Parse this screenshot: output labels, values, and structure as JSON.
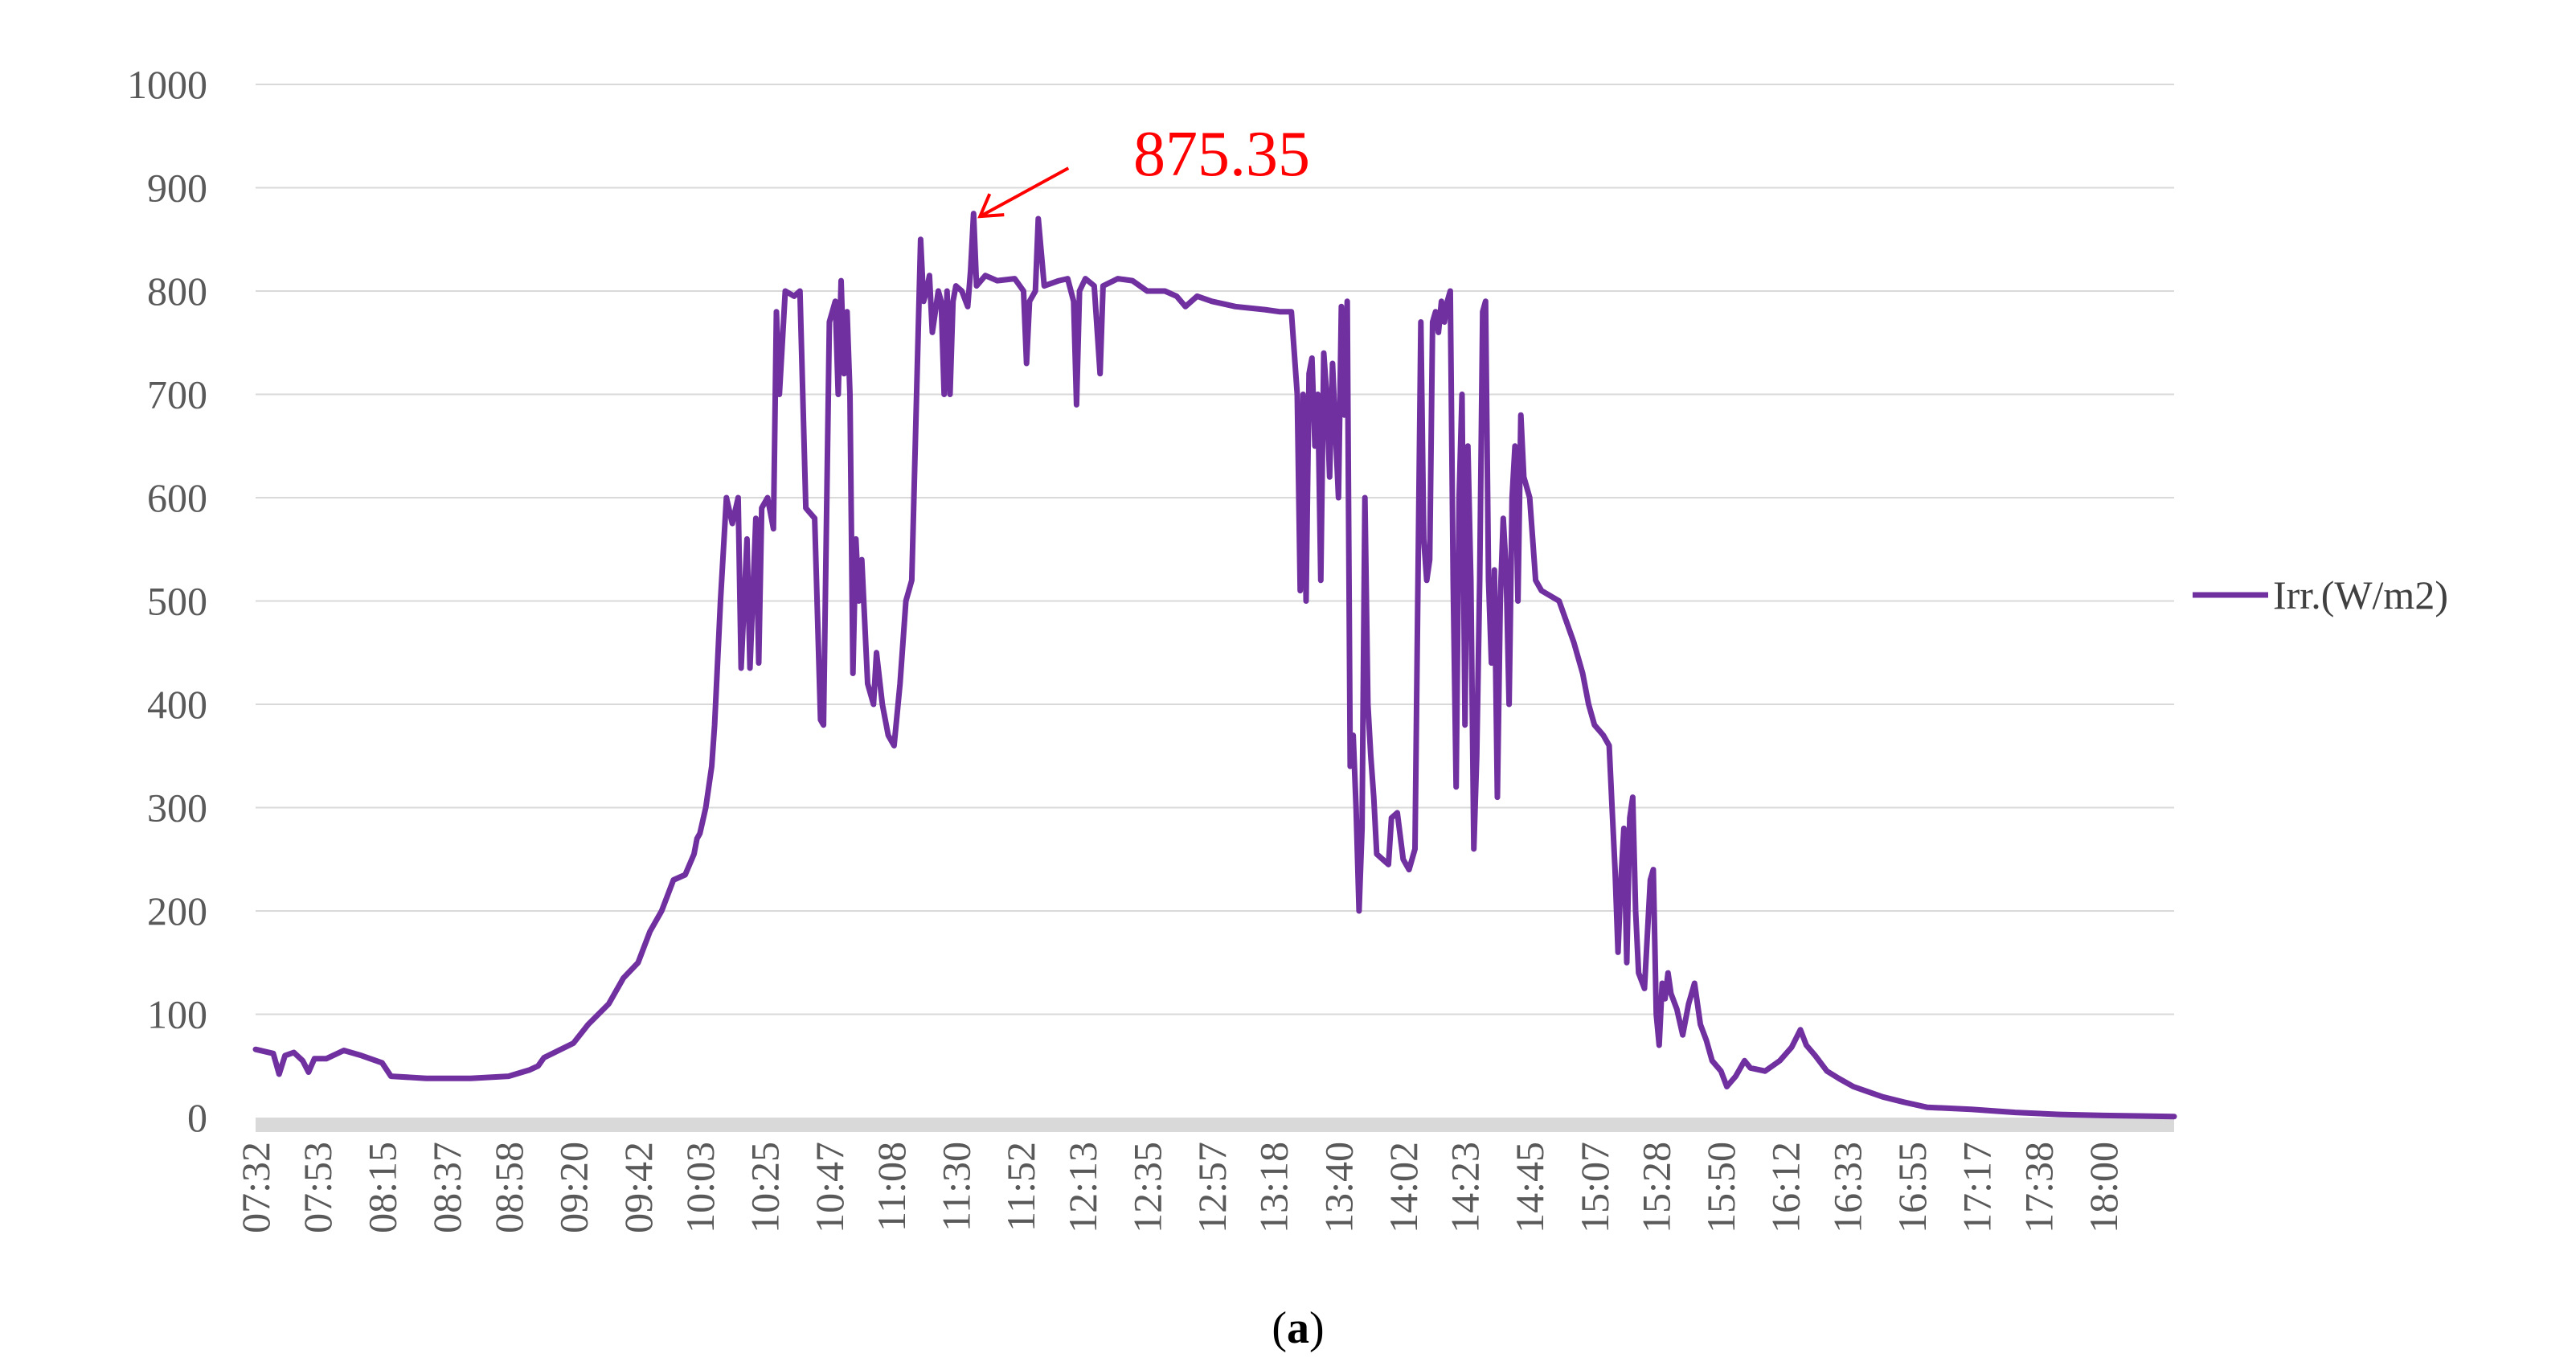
{
  "chart_data": {
    "type": "line",
    "title": "",
    "xlabel": "",
    "ylabel": "",
    "ylim": [
      0,
      1000
    ],
    "y_ticks": [
      "0",
      "100",
      "200",
      "300",
      "400",
      "500",
      "600",
      "700",
      "800",
      "900",
      "1000"
    ],
    "x_ticks": [
      "07:32",
      "07:53",
      "08:15",
      "08:37",
      "08:58",
      "09:20",
      "09:42",
      "10:03",
      "10:25",
      "10:47",
      "11:08",
      "11:30",
      "11:52",
      "12:13",
      "12:35",
      "12:57",
      "13:18",
      "13:40",
      "14:02",
      "14:23",
      "14:45",
      "15:07",
      "15:28",
      "15:50",
      "16:12",
      "16:33",
      "16:55",
      "17:17",
      "17:38",
      "18:00"
    ],
    "x_range": [
      "07:32",
      "18:24"
    ],
    "grid": true,
    "legend_position": "right",
    "series": [
      {
        "name": "Irr.(W/m2)",
        "color": "#7030a0",
        "points": [
          [
            "07:32",
            66
          ],
          [
            "07:38",
            62
          ],
          [
            "07:40",
            42
          ],
          [
            "07:42",
            60
          ],
          [
            "07:45",
            63
          ],
          [
            "07:48",
            55
          ],
          [
            "07:50",
            44
          ],
          [
            "07:52",
            57
          ],
          [
            "07:56",
            57
          ],
          [
            "08:02",
            65
          ],
          [
            "08:08",
            60
          ],
          [
            "08:15",
            53
          ],
          [
            "08:18",
            40
          ],
          [
            "08:30",
            38
          ],
          [
            "08:45",
            38
          ],
          [
            "08:58",
            40
          ],
          [
            "09:05",
            46
          ],
          [
            "09:08",
            50
          ],
          [
            "09:10",
            58
          ],
          [
            "09:20",
            72
          ],
          [
            "09:25",
            90
          ],
          [
            "09:32",
            110
          ],
          [
            "09:37",
            135
          ],
          [
            "09:42",
            150
          ],
          [
            "09:46",
            180
          ],
          [
            "09:50",
            200
          ],
          [
            "09:54",
            230
          ],
          [
            "09:58",
            235
          ],
          [
            "10:01",
            255
          ],
          [
            "10:02",
            270
          ],
          [
            "10:03",
            275
          ],
          [
            "10:05",
            300
          ],
          [
            "10:07",
            340
          ],
          [
            "10:08",
            380
          ],
          [
            "10:10",
            500
          ],
          [
            "10:12",
            600
          ],
          [
            "10:14",
            575
          ],
          [
            "10:16",
            600
          ],
          [
            "10:17",
            435
          ],
          [
            "10:19",
            560
          ],
          [
            "10:20",
            435
          ],
          [
            "10:22",
            580
          ],
          [
            "10:23",
            440
          ],
          [
            "10:24",
            590
          ],
          [
            "10:26",
            600
          ],
          [
            "10:28",
            570
          ],
          [
            "10:29",
            780
          ],
          [
            "10:30",
            700
          ],
          [
            "10:32",
            800
          ],
          [
            "10:35",
            795
          ],
          [
            "10:37",
            800
          ],
          [
            "10:39",
            590
          ],
          [
            "10:42",
            580
          ],
          [
            "10:44",
            385
          ],
          [
            "10:45",
            380
          ],
          [
            "10:47",
            770
          ],
          [
            "10:49",
            790
          ],
          [
            "10:50",
            700
          ],
          [
            "10:51",
            810
          ],
          [
            "10:52",
            720
          ],
          [
            "10:53",
            780
          ],
          [
            "10:54",
            700
          ],
          [
            "10:55",
            430
          ],
          [
            "10:56",
            560
          ],
          [
            "10:57",
            500
          ],
          [
            "10:58",
            540
          ],
          [
            "11:00",
            420
          ],
          [
            "11:02",
            400
          ],
          [
            "11:03",
            450
          ],
          [
            "11:05",
            400
          ],
          [
            "11:07",
            370
          ],
          [
            "11:09",
            360
          ],
          [
            "11:11",
            420
          ],
          [
            "11:13",
            500
          ],
          [
            "11:15",
            520
          ],
          [
            "11:18",
            850
          ],
          [
            "11:19",
            790
          ],
          [
            "11:20",
            800
          ],
          [
            "11:21",
            815
          ],
          [
            "11:22",
            760
          ],
          [
            "11:23",
            780
          ],
          [
            "11:24",
            800
          ],
          [
            "11:25",
            790
          ],
          [
            "11:26",
            700
          ],
          [
            "11:27",
            800
          ],
          [
            "11:28",
            700
          ],
          [
            "11:29",
            790
          ],
          [
            "11:30",
            805
          ],
          [
            "11:32",
            800
          ],
          [
            "11:34",
            785
          ],
          [
            "11:35",
            820
          ],
          [
            "11:36",
            875
          ],
          [
            "11:37",
            805
          ],
          [
            "11:40",
            815
          ],
          [
            "11:44",
            810
          ],
          [
            "11:50",
            812
          ],
          [
            "11:53",
            800
          ],
          [
            "11:54",
            730
          ],
          [
            "11:55",
            790
          ],
          [
            "11:57",
            800
          ],
          [
            "11:58",
            870
          ],
          [
            "12:00",
            805
          ],
          [
            "12:05",
            810
          ],
          [
            "12:08",
            812
          ],
          [
            "12:10",
            790
          ],
          [
            "12:11",
            690
          ],
          [
            "12:12",
            800
          ],
          [
            "12:14",
            812
          ],
          [
            "12:17",
            805
          ],
          [
            "12:19",
            720
          ],
          [
            "12:20",
            805
          ],
          [
            "12:25",
            812
          ],
          [
            "12:30",
            810
          ],
          [
            "12:35",
            800
          ],
          [
            "12:41",
            800
          ],
          [
            "12:45",
            795
          ],
          [
            "12:48",
            785
          ],
          [
            "12:52",
            795
          ],
          [
            "12:57",
            790
          ],
          [
            "13:05",
            785
          ],
          [
            "13:15",
            782
          ],
          [
            "13:20",
            780
          ],
          [
            "13:24",
            780
          ],
          [
            "13:26",
            700
          ],
          [
            "13:27",
            510
          ],
          [
            "13:28",
            700
          ],
          [
            "13:29",
            500
          ],
          [
            "13:30",
            720
          ],
          [
            "13:31",
            735
          ],
          [
            "13:32",
            650
          ],
          [
            "13:33",
            700
          ],
          [
            "13:34",
            520
          ],
          [
            "13:35",
            740
          ],
          [
            "13:36",
            700
          ],
          [
            "13:37",
            620
          ],
          [
            "13:38",
            730
          ],
          [
            "13:40",
            600
          ],
          [
            "13:41",
            785
          ],
          [
            "13:42",
            680
          ],
          [
            "13:43",
            790
          ],
          [
            "13:44",
            340
          ],
          [
            "13:45",
            370
          ],
          [
            "13:46",
            300
          ],
          [
            "13:47",
            200
          ],
          [
            "13:48",
            280
          ],
          [
            "13:49",
            600
          ],
          [
            "13:50",
            400
          ],
          [
            "13:51",
            350
          ],
          [
            "13:52",
            310
          ],
          [
            "13:53",
            255
          ],
          [
            "13:55",
            250
          ],
          [
            "13:57",
            245
          ],
          [
            "13:58",
            290
          ],
          [
            "14:00",
            295
          ],
          [
            "14:02",
            250
          ],
          [
            "14:04",
            240
          ],
          [
            "14:06",
            260
          ],
          [
            "14:08",
            770
          ],
          [
            "14:09",
            560
          ],
          [
            "14:10",
            520
          ],
          [
            "14:11",
            540
          ],
          [
            "14:12",
            770
          ],
          [
            "14:13",
            780
          ],
          [
            "14:14",
            760
          ],
          [
            "14:15",
            790
          ],
          [
            "14:16",
            770
          ],
          [
            "14:17",
            790
          ],
          [
            "14:18",
            800
          ],
          [
            "14:19",
            520
          ],
          [
            "14:20",
            320
          ],
          [
            "14:21",
            600
          ],
          [
            "14:22",
            700
          ],
          [
            "14:23",
            380
          ],
          [
            "14:24",
            650
          ],
          [
            "14:25",
            520
          ],
          [
            "14:26",
            260
          ],
          [
            "14:27",
            350
          ],
          [
            "14:28",
            520
          ],
          [
            "14:29",
            780
          ],
          [
            "14:30",
            790
          ],
          [
            "14:31",
            520
          ],
          [
            "14:32",
            440
          ],
          [
            "14:33",
            530
          ],
          [
            "14:34",
            310
          ],
          [
            "14:35",
            500
          ],
          [
            "14:36",
            580
          ],
          [
            "14:37",
            530
          ],
          [
            "14:38",
            400
          ],
          [
            "14:39",
            600
          ],
          [
            "14:40",
            650
          ],
          [
            "14:41",
            500
          ],
          [
            "14:42",
            680
          ],
          [
            "14:43",
            620
          ],
          [
            "14:45",
            600
          ],
          [
            "14:47",
            520
          ],
          [
            "14:49",
            510
          ],
          [
            "14:55",
            500
          ],
          [
            "15:00",
            460
          ],
          [
            "15:03",
            430
          ],
          [
            "15:05",
            400
          ],
          [
            "15:07",
            380
          ],
          [
            "15:10",
            370
          ],
          [
            "15:12",
            360
          ],
          [
            "15:13",
            300
          ],
          [
            "15:14",
            240
          ],
          [
            "15:15",
            160
          ],
          [
            "15:16",
            230
          ],
          [
            "15:17",
            280
          ],
          [
            "15:18",
            150
          ],
          [
            "15:19",
            290
          ],
          [
            "15:20",
            310
          ],
          [
            "15:21",
            200
          ],
          [
            "15:22",
            140
          ],
          [
            "15:24",
            125
          ],
          [
            "15:26",
            230
          ],
          [
            "15:27",
            240
          ],
          [
            "15:28",
            100
          ],
          [
            "15:29",
            70
          ],
          [
            "15:30",
            130
          ],
          [
            "15:31",
            115
          ],
          [
            "15:32",
            140
          ],
          [
            "15:33",
            120
          ],
          [
            "15:35",
            105
          ],
          [
            "15:37",
            80
          ],
          [
            "15:39",
            110
          ],
          [
            "15:41",
            130
          ],
          [
            "15:43",
            90
          ],
          [
            "15:45",
            75
          ],
          [
            "15:47",
            55
          ],
          [
            "15:50",
            45
          ],
          [
            "15:52",
            30
          ],
          [
            "15:55",
            40
          ],
          [
            "15:58",
            55
          ],
          [
            "16:00",
            48
          ],
          [
            "16:05",
            45
          ],
          [
            "16:10",
            55
          ],
          [
            "16:14",
            68
          ],
          [
            "16:17",
            85
          ],
          [
            "16:19",
            70
          ],
          [
            "16:22",
            60
          ],
          [
            "16:26",
            45
          ],
          [
            "16:30",
            38
          ],
          [
            "16:35",
            30
          ],
          [
            "16:40",
            25
          ],
          [
            "16:45",
            20
          ],
          [
            "16:52",
            15
          ],
          [
            "17:00",
            10
          ],
          [
            "17:15",
            8
          ],
          [
            "17:30",
            5
          ],
          [
            "17:45",
            3
          ],
          [
            "18:00",
            2
          ],
          [
            "18:24",
            1
          ]
        ]
      }
    ],
    "annotations": [
      {
        "text": "875.35",
        "x": "11:36",
        "y": 875.35,
        "color": "#ff0000"
      }
    ]
  },
  "figure": {
    "caption_prefix": "(",
    "caption_letter": "a",
    "caption_suffix": ")"
  }
}
